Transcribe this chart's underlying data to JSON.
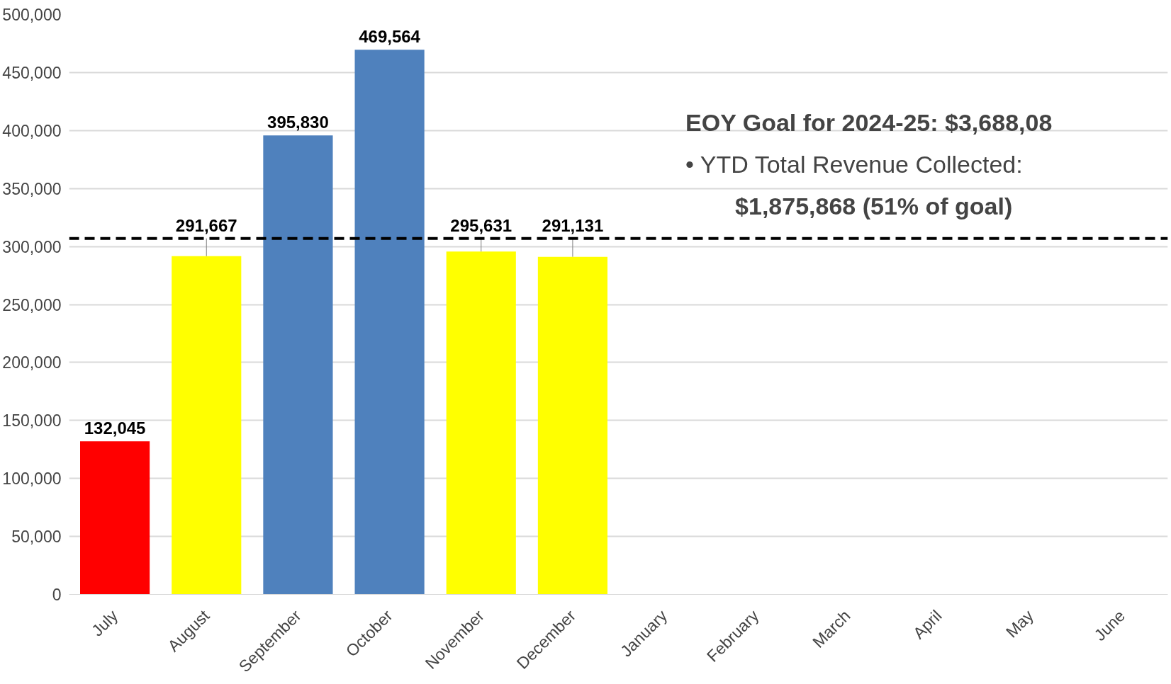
{
  "chart_data": {
    "type": "bar",
    "categories": [
      "July",
      "August",
      "September",
      "October",
      "November",
      "December",
      "January",
      "February",
      "March",
      "April",
      "May",
      "June"
    ],
    "values": [
      132045,
      291667,
      395830,
      469564,
      295631,
      291131,
      null,
      null,
      null,
      null,
      null,
      null
    ],
    "colors": [
      "#ff0000",
      "#ffff00",
      "#4f81bd",
      "#4f81bd",
      "#ffff00",
      "#ffff00",
      "#4f81bd",
      "#4f81bd",
      "#4f81bd",
      "#4f81bd",
      "#4f81bd",
      "#4f81bd"
    ],
    "ylim": [
      0,
      500000
    ],
    "yticks": [
      {
        "value": 0,
        "label": "0"
      },
      {
        "value": 50000,
        "label": "50,000"
      },
      {
        "value": 100000,
        "label": "100,000"
      },
      {
        "value": 150000,
        "label": "150,000"
      },
      {
        "value": 200000,
        "label": "200,000"
      },
      {
        "value": 250000,
        "label": "250,000"
      },
      {
        "value": 300000,
        "label": "300,000"
      },
      {
        "value": 350000,
        "label": "350,000"
      },
      {
        "value": 400000,
        "label": "400,000"
      },
      {
        "value": 450000,
        "label": "450,000"
      },
      {
        "value": 500000,
        "label": "500,000"
      }
    ],
    "grid": "y",
    "data_labels": true,
    "value_labels": [
      "132,045",
      "291,667",
      "395,830",
      "469,564",
      "295,631",
      "291,131",
      null,
      null,
      null,
      null,
      null,
      null
    ],
    "ref_lines": [
      {
        "axis": "y",
        "value": 307000,
        "label": null,
        "color": "#000000",
        "line_style": "dashed"
      }
    ],
    "annotations": [
      "EOY Goal for 2024-25: $3,688,08",
      "•   YTD Total Revenue Collected:",
      "$1,875,868 (51% of goal)"
    ]
  }
}
